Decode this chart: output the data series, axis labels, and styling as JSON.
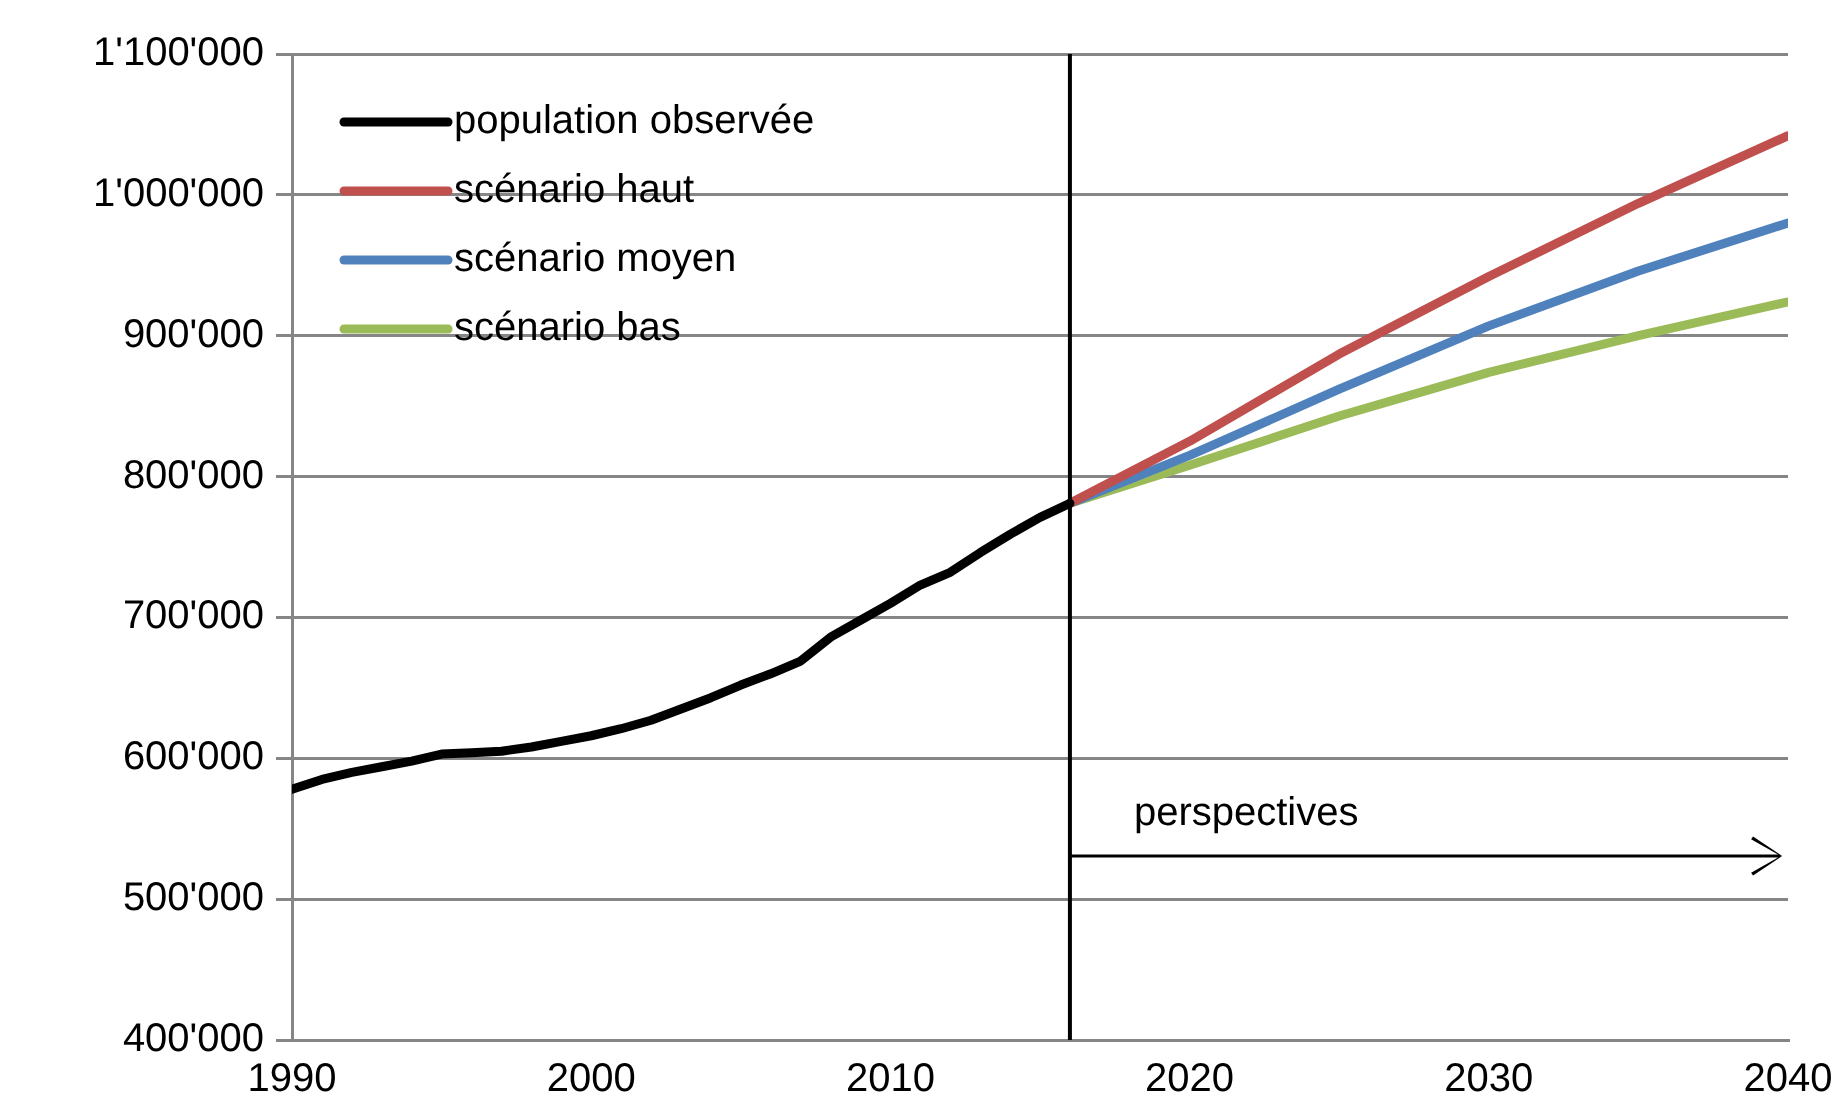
{
  "chart_data": {
    "type": "line",
    "xlim": [
      1990,
      2040
    ],
    "xticks": [
      1990,
      2000,
      2010,
      2020,
      2030,
      2040
    ],
    "ylim": [
      400000,
      1100000
    ],
    "yticks": [
      {
        "value": 400000,
        "label": "400'000"
      },
      {
        "value": 500000,
        "label": "500'000"
      },
      {
        "value": 600000,
        "label": "600'000"
      },
      {
        "value": 700000,
        "label": "700'000"
      },
      {
        "value": 800000,
        "label": "800'000"
      },
      {
        "value": 900000,
        "label": "900'000"
      },
      {
        "value": 1000000,
        "label": "1'000'000"
      },
      {
        "value": 1100000,
        "label": "1'100'000"
      }
    ],
    "grid": "y",
    "legend": "top left",
    "marker": "none",
    "line_style": "solid",
    "series": [
      {
        "name": "population observée",
        "color": "#000000",
        "x": [
          1990,
          1991,
          1992,
          1993,
          1994,
          1995,
          1996,
          1997,
          1998,
          1999,
          2000,
          2001,
          2002,
          2003,
          2004,
          2005,
          2006,
          2007,
          2008,
          2009,
          2010,
          2011,
          2012,
          2013,
          2014,
          2015,
          2016
        ],
        "values": [
          578000,
          585000,
          590000,
          594000,
          598000,
          603000,
          604000,
          605000,
          608000,
          612000,
          616000,
          621000,
          627000,
          635000,
          643000,
          652000,
          660000,
          669000,
          686000,
          698000,
          710000,
          723000,
          732000,
          746000,
          759000,
          771000,
          781000
        ]
      },
      {
        "name": "scénario haut",
        "color": "#c0504d",
        "x": [
          2016,
          2020,
          2025,
          2030,
          2035,
          2040
        ],
        "values": [
          781000,
          825000,
          887000,
          942000,
          994000,
          1042000
        ]
      },
      {
        "name": "scénario moyen",
        "color": "#4f81bd",
        "x": [
          2016,
          2020,
          2025,
          2030,
          2035,
          2040
        ],
        "values": [
          781000,
          815000,
          862000,
          907000,
          946000,
          980000
        ]
      },
      {
        "name": "scénario bas",
        "color": "#9bbb59",
        "x": [
          2016,
          2020,
          2025,
          2030,
          2035,
          2040
        ],
        "values": [
          781000,
          808000,
          843000,
          874000,
          900000,
          924000
        ]
      }
    ],
    "ref_lines": [
      {
        "axis": "x",
        "value": 2016,
        "color": "#000000"
      }
    ],
    "annotations": [
      {
        "text": "perspectives",
        "x": 2016,
        "y": 530000
      }
    ]
  }
}
